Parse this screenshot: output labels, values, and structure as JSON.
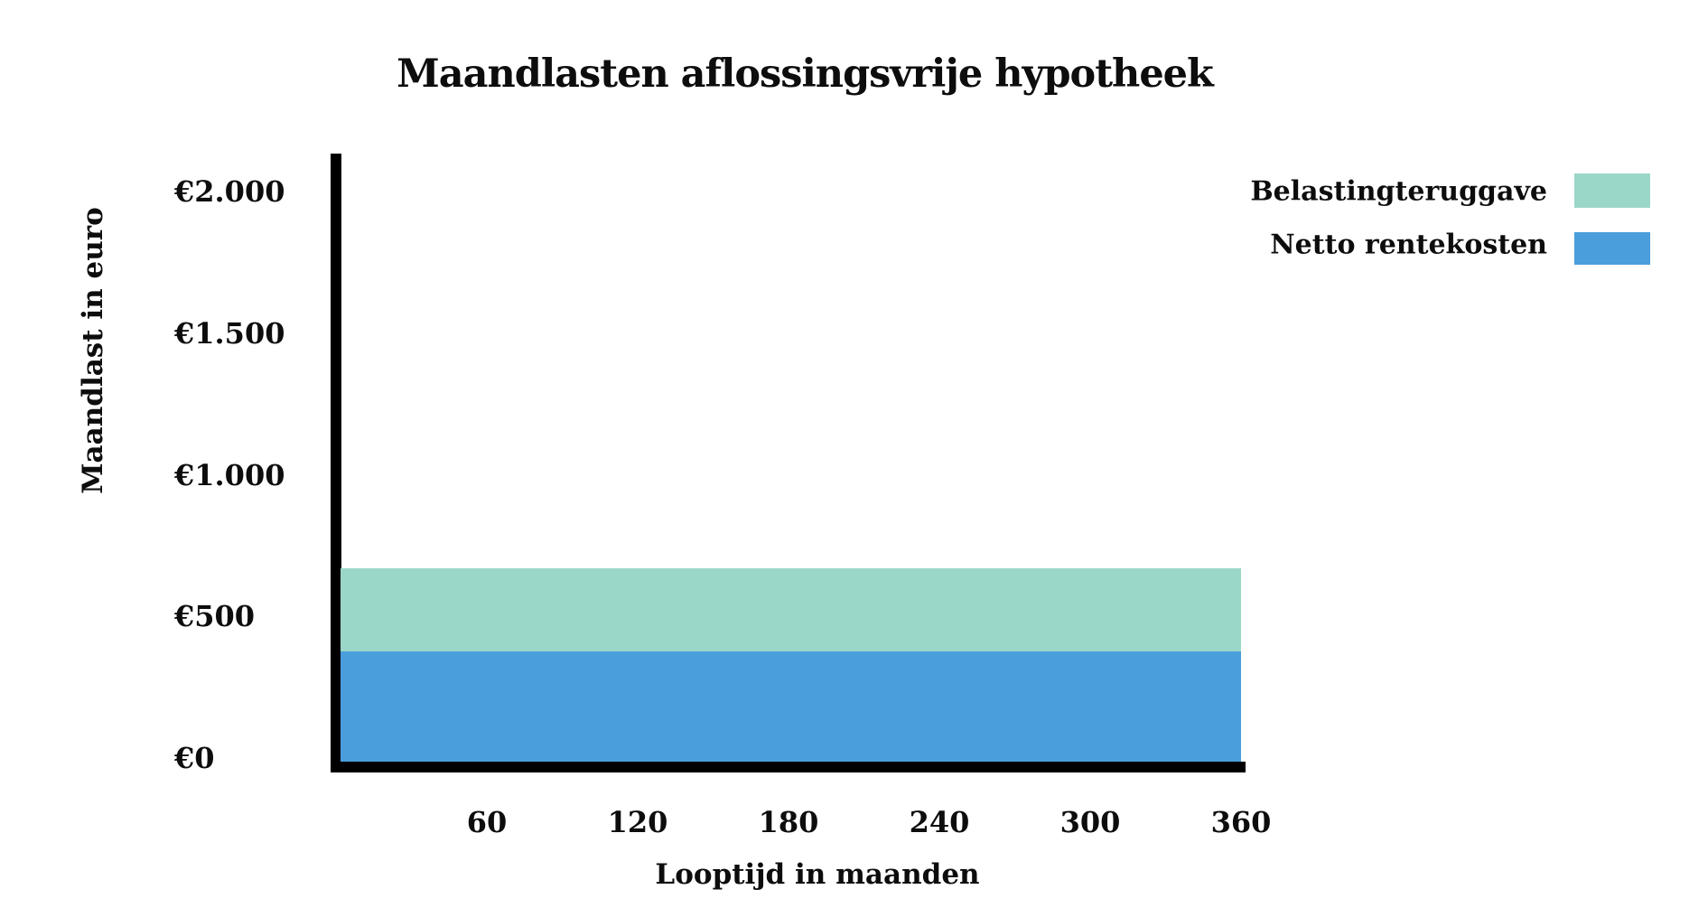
{
  "chart_data": {
    "type": "area",
    "stacked": true,
    "title": "Maandlasten aflossingsvrije hypotheek",
    "xlabel": "Looptijd in maanden",
    "ylabel": "Maandlast in euro",
    "x_range_months": [
      0,
      360
    ],
    "x_ticks": [
      60,
      120,
      180,
      240,
      300,
      360
    ],
    "y_ticks": [
      {
        "value": 2000,
        "label": "€2.000"
      },
      {
        "value": 1500,
        "label": "€1.500"
      },
      {
        "value": 1000,
        "label": "€1.000"
      },
      {
        "value": 500,
        "label": "€500"
      },
      {
        "value": 0,
        "label": "€0"
      }
    ],
    "ylim": [
      0,
      2140
    ],
    "grid": false,
    "legend_position": "top-right",
    "series": [
      {
        "name": "Netto rentekosten",
        "color": "#4A9EDC",
        "value_eur_per_month": 375,
        "constant_over_term": true
      },
      {
        "name": "Belastingteruggave",
        "color": "#9AD7C8",
        "value_eur_per_month": 295,
        "constant_over_term": true
      }
    ],
    "total_eur_per_month": 670
  },
  "colors": {
    "axis": "#000000",
    "text": "#0d0d0d",
    "background": "#ffffff"
  }
}
